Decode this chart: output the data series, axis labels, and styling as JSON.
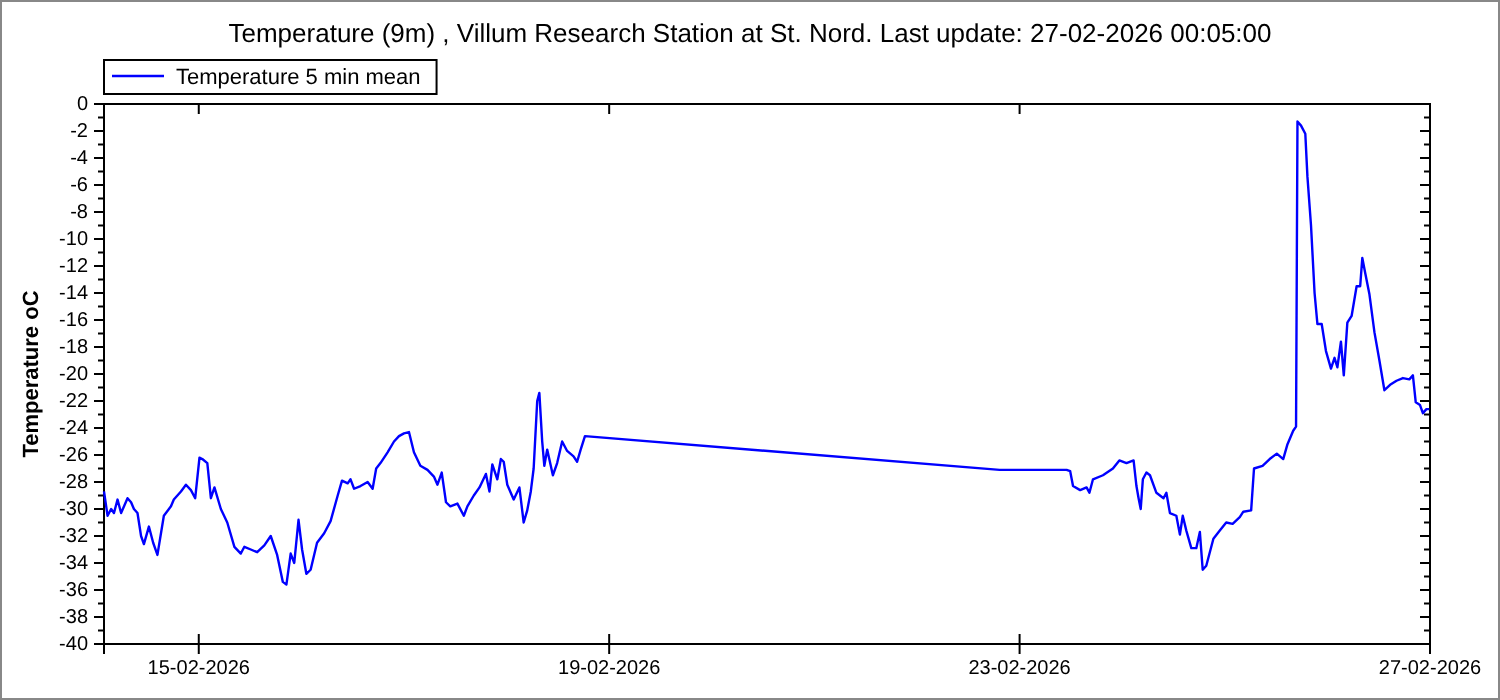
{
  "chart_data": {
    "type": "line",
    "title": "Temperature (9m) , Villum Research Station at St. Nord. Last update: 27-02-2026 00:05:00",
    "ylabel": "Temperature oC",
    "x": [
      "2026-02-14T01:50",
      "2026-02-14T02:40",
      "2026-02-14T03:30",
      "2026-02-14T04:10",
      "2026-02-14T05:00",
      "2026-02-14T05:50",
      "2026-02-14T07:20",
      "2026-02-14T08:10",
      "2026-02-14T08:50",
      "2026-02-14T09:40",
      "2026-02-14T10:30",
      "2026-02-14T11:10",
      "2026-02-14T12:20",
      "2026-02-14T13:20",
      "2026-02-14T14:20",
      "2026-02-14T15:50",
      "2026-02-14T17:30",
      "2026-02-14T18:10",
      "2026-02-14T19:50",
      "2026-02-14T21:00",
      "2026-02-14T22:10",
      "2026-02-14T23:10",
      "2026-02-15T00:10",
      "2026-02-15T00:50",
      "2026-02-15T02:00",
      "2026-02-15T02:50",
      "2026-02-15T03:40",
      "2026-02-15T05:10",
      "2026-02-15T06:40",
      "2026-02-15T08:20",
      "2026-02-15T09:50",
      "2026-02-15T10:40",
      "2026-02-15T12:10",
      "2026-02-15T13:40",
      "2026-02-15T15:20",
      "2026-02-15T16:50",
      "2026-02-15T18:20",
      "2026-02-15T19:40",
      "2026-02-15T20:30",
      "2026-02-15T21:30",
      "2026-02-15T22:20",
      "2026-02-15T23:20",
      "2026-02-16T00:10",
      "2026-02-16T01:10",
      "2026-02-16T02:10",
      "2026-02-16T03:40",
      "2026-02-16T05:20",
      "2026-02-16T06:50",
      "2026-02-16T08:30",
      "2026-02-16T09:30",
      "2026-02-16T10:50",
      "2026-02-16T11:30",
      "2026-02-16T12:20",
      "2026-02-16T13:50",
      "2026-02-16T15:30",
      "2026-02-16T16:40",
      "2026-02-16T17:30",
      "2026-02-16T18:30",
      "2026-02-16T20:10",
      "2026-02-16T21:40",
      "2026-02-16T22:50",
      "2026-02-17T00:00",
      "2026-02-17T01:10",
      "2026-02-17T02:20",
      "2026-02-17T03:50",
      "2026-02-17T05:30",
      "2026-02-17T07:00",
      "2026-02-17T07:50",
      "2026-02-17T08:50",
      "2026-02-17T09:50",
      "2026-02-17T10:50",
      "2026-02-17T12:30",
      "2026-02-17T14:00",
      "2026-02-17T14:50",
      "2026-02-17T16:20",
      "2026-02-17T17:40",
      "2026-02-17T19:10",
      "2026-02-17T20:00",
      "2026-02-17T20:40",
      "2026-02-17T21:50",
      "2026-02-17T22:40",
      "2026-02-17T23:20",
      "2026-02-18T00:10",
      "2026-02-18T01:40",
      "2026-02-18T03:00",
      "2026-02-18T04:00",
      "2026-02-18T04:50",
      "2026-02-18T05:40",
      "2026-02-18T06:20",
      "2026-02-18T07:10",
      "2026-02-18T07:40",
      "2026-02-18T08:20",
      "2026-02-18T08:50",
      "2026-02-18T09:30",
      "2026-02-18T10:50",
      "2026-02-18T11:50",
      "2026-02-18T13:00",
      "2026-02-18T14:10",
      "2026-02-18T15:40",
      "2026-02-18T16:30",
      "2026-02-18T17:20",
      "2026-02-18T18:20",
      "2026-02-22T19:20",
      "2026-02-23T11:00",
      "2026-02-23T11:50",
      "2026-02-23T12:30",
      "2026-02-23T14:10",
      "2026-02-23T15:40",
      "2026-02-23T16:20",
      "2026-02-23T17:10",
      "2026-02-23T19:30",
      "2026-02-23T21:50",
      "2026-02-23T23:20",
      "2026-02-24T01:00",
      "2026-02-24T02:40",
      "2026-02-24T03:20",
      "2026-02-24T03:50",
      "2026-02-24T04:20",
      "2026-02-24T04:50",
      "2026-02-24T05:40",
      "2026-02-24T06:30",
      "2026-02-24T08:00",
      "2026-02-24T09:40",
      "2026-02-24T10:20",
      "2026-02-24T11:10",
      "2026-02-24T12:40",
      "2026-02-24T13:30",
      "2026-02-24T14:10",
      "2026-02-24T15:00",
      "2026-02-24T16:10",
      "2026-02-24T17:20",
      "2026-02-24T18:10",
      "2026-02-24T18:50",
      "2026-02-24T19:40",
      "2026-02-24T21:20",
      "2026-02-24T22:50",
      "2026-02-25T00:20",
      "2026-02-25T01:50",
      "2026-02-25T03:30",
      "2026-02-25T04:20",
      "2026-02-25T06:10",
      "2026-02-25T06:50",
      "2026-02-25T08:50",
      "2026-02-25T10:30",
      "2026-02-25T12:10",
      "2026-02-25T13:40",
      "2026-02-25T14:40",
      "2026-02-25T16:00",
      "2026-02-25T16:40",
      "2026-02-25T17:00",
      "2026-02-25T17:50",
      "2026-02-25T18:50",
      "2026-02-25T19:20",
      "2026-02-25T20:10",
      "2026-02-25T21:00",
      "2026-02-25T21:40",
      "2026-02-25T22:40",
      "2026-02-25T23:40",
      "2026-02-26T00:50",
      "2026-02-26T01:40",
      "2026-02-26T02:20",
      "2026-02-26T03:10",
      "2026-02-26T03:50",
      "2026-02-26T04:40",
      "2026-02-26T05:40",
      "2026-02-26T06:50",
      "2026-02-26T07:40",
      "2026-02-26T08:10",
      "2026-02-26T08:50",
      "2026-02-26T09:50",
      "2026-02-26T11:00",
      "2026-02-26T12:10",
      "2026-02-26T13:20",
      "2026-02-26T14:40",
      "2026-02-26T16:10",
      "2026-02-26T17:40",
      "2026-02-26T19:10",
      "2026-02-26T20:00",
      "2026-02-26T20:40",
      "2026-02-26T21:40",
      "2026-02-26T22:20",
      "2026-02-26T23:10",
      "2026-02-26T23:50"
    ],
    "series": [
      {
        "name": "Temperature 5 min mean",
        "color": "#0000ff",
        "values": [
          -28.7,
          -30.5,
          -30,
          -30.3,
          -29.3,
          -30.3,
          -29.2,
          -29.5,
          -30,
          -30.3,
          -32,
          -32.6,
          -31.3,
          -32.5,
          -33.4,
          -30.5,
          -29.8,
          -29.3,
          -28.7,
          -28.2,
          -28.6,
          -29.2,
          -26.2,
          -26.3,
          -26.6,
          -29.2,
          -28.4,
          -30,
          -31,
          -32.8,
          -33.3,
          -32.8,
          -33,
          -33.2,
          -32.7,
          -32,
          -33.4,
          -35.4,
          -35.6,
          -33.3,
          -34,
          -30.8,
          -33,
          -34.8,
          -34.5,
          -32.5,
          -31.8,
          -30.9,
          -29,
          -27.9,
          -28.1,
          -27.8,
          -28.5,
          -28.3,
          -28,
          -28.5,
          -27,
          -26.6,
          -25.8,
          -25,
          -24.6,
          -24.4,
          -24.3,
          -25.8,
          -26.8,
          -27.1,
          -27.6,
          -28.2,
          -27.3,
          -29.5,
          -29.8,
          -29.6,
          -30.5,
          -29.8,
          -29,
          -28.4,
          -27.4,
          -28.7,
          -26.7,
          -27.8,
          -26.3,
          -26.5,
          -28.2,
          -29.3,
          -28.4,
          -31,
          -30.1,
          -28.7,
          -27,
          -22,
          -21.4,
          -25,
          -26.8,
          -25.6,
          -27.5,
          -26.6,
          -25,
          -25.7,
          -26.1,
          -26.5,
          -25.6,
          -24.6,
          -27.1,
          -27.1,
          -27.2,
          -28.3,
          -28.6,
          -28.4,
          -28.8,
          -27.8,
          -27.5,
          -27,
          -26.4,
          -26.6,
          -26.4,
          -28.3,
          -29.2,
          -30,
          -27.8,
          -27.3,
          -27.5,
          -28.8,
          -29.2,
          -28.8,
          -30.3,
          -30.5,
          -31.9,
          -30.5,
          -31.6,
          -32.9,
          -32.9,
          -31.7,
          -34.5,
          -34.2,
          -32.2,
          -31.6,
          -31,
          -31.1,
          -30.6,
          -30.2,
          -30.1,
          -27,
          -26.8,
          -26.3,
          -25.9,
          -26.3,
          -25.2,
          -24.2,
          -23.9,
          -1.3,
          -1.6,
          -2.2,
          -5.4,
          -9,
          -14,
          -16.3,
          -16.3,
          -18.3,
          -19.6,
          -18.8,
          -19.5,
          -17.6,
          -20.1,
          -16.2,
          -15.7,
          -13.5,
          -13.5,
          -11.4,
          -12.5,
          -14.1,
          -16.9,
          -19,
          -21.2,
          -20.8,
          -20.5,
          -20.3,
          -20.4,
          -20.1,
          -22.1,
          -22.3,
          -22.9,
          -22.6,
          -22.6
        ]
      }
    ],
    "xlim": [
      "2026-02-14T01:50",
      "2026-02-27T00:00"
    ],
    "xticks": [
      {
        "value": "2026-02-15",
        "label": "15-02-2026"
      },
      {
        "value": "2026-02-19",
        "label": "19-02-2026"
      },
      {
        "value": "2026-02-23",
        "label": "23-02-2026"
      },
      {
        "value": "2026-02-27",
        "label": "27-02-2026"
      }
    ],
    "ylim": [
      -40,
      0
    ],
    "yticks": [
      0,
      -2,
      -4,
      -6,
      -8,
      -10,
      -12,
      -14,
      -16,
      -18,
      -20,
      -22,
      -24,
      -26,
      -28,
      -30,
      -32,
      -34,
      -36,
      -38,
      -40
    ],
    "grid": false,
    "legend": "top left",
    "line_style": "solid",
    "marker": "none"
  }
}
